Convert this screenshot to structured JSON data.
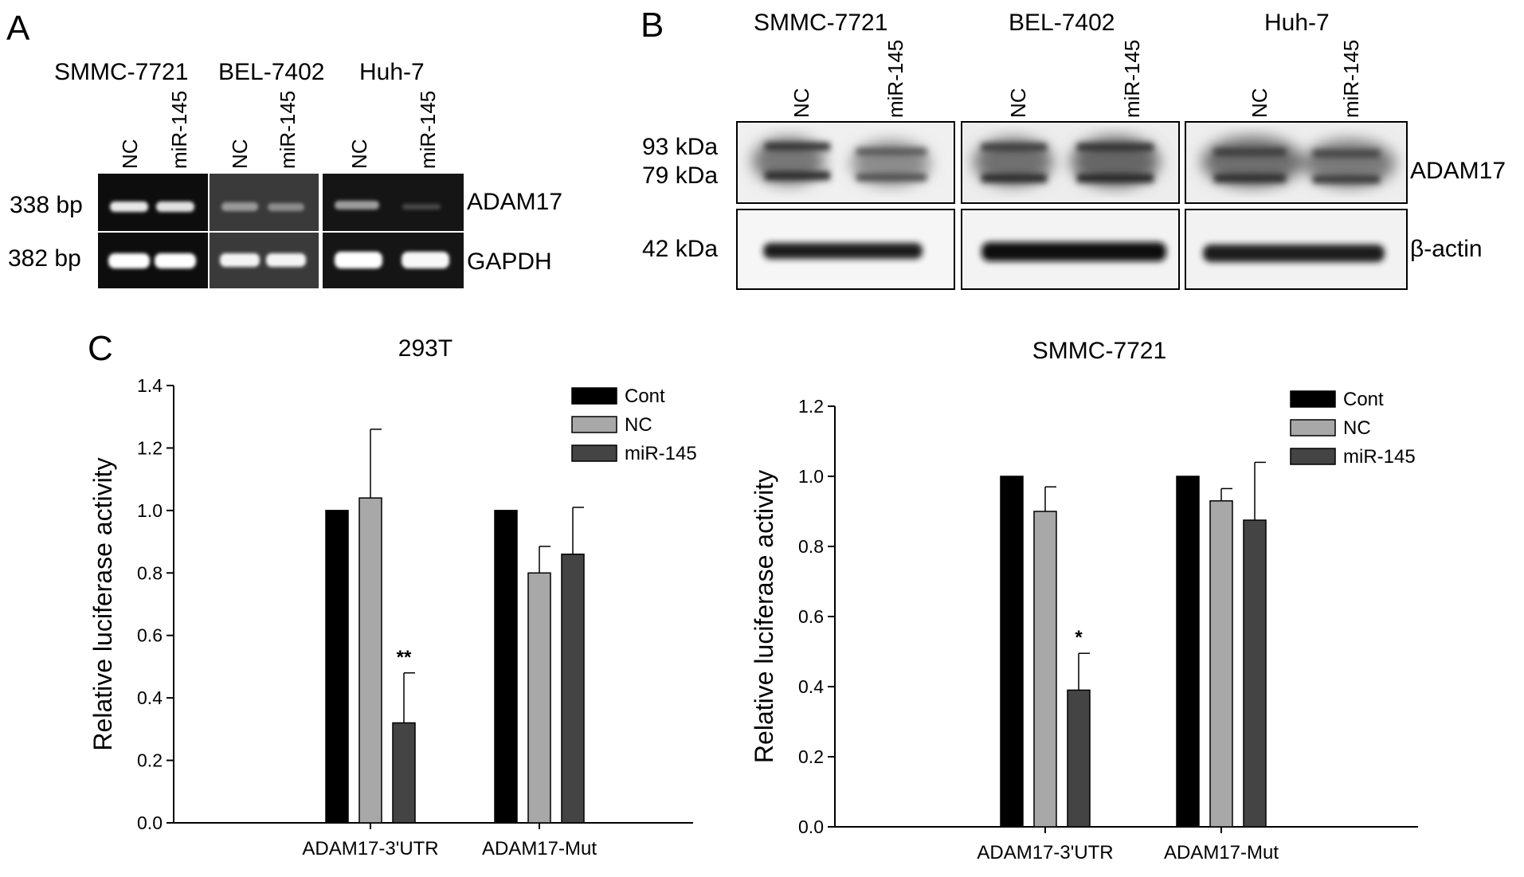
{
  "panels": {
    "A": {
      "letter": "A",
      "cell_lines": [
        "SMMC-7721",
        "BEL-7402",
        "Huh-7"
      ],
      "lanes": [
        "NC",
        "miR-145"
      ],
      "sizes": [
        "338 bp",
        "382 bp"
      ],
      "genes": [
        "ADAM17",
        "GAPDH"
      ]
    },
    "B": {
      "letter": "B",
      "cell_lines": [
        "SMMC-7721",
        "BEL-7402",
        "Huh-7"
      ],
      "lanes": [
        "NC",
        "miR-145"
      ],
      "markers": [
        "93 kDa",
        "79 kDa",
        "42 kDa"
      ],
      "proteins": [
        "ADAM17",
        "β-actin"
      ]
    },
    "C": {
      "letter": "C"
    }
  },
  "chart_data": [
    {
      "type": "bar",
      "title": "293T",
      "ylabel": "Relative luciferase activity",
      "xlabel": "",
      "categories": [
        "ADAM17-3'UTR",
        "ADAM17-Mut"
      ],
      "ylim": [
        0,
        1.4
      ],
      "yticks": [
        "0.0",
        "0.2",
        "0.4",
        "0.6",
        "0.8",
        "1.0",
        "1.2",
        "1.4"
      ],
      "legend_position": "top-right",
      "series": [
        {
          "name": "Cont",
          "color": "#000000",
          "values": [
            1.0,
            1.0
          ],
          "errors": [
            0,
            0
          ]
        },
        {
          "name": "NC",
          "color": "#a8a8a8",
          "values": [
            1.04,
            0.8
          ],
          "errors": [
            0.22,
            0.085
          ]
        },
        {
          "name": "miR-145",
          "color": "#444444",
          "values": [
            0.32,
            0.86
          ],
          "errors": [
            0.16,
            0.15
          ]
        }
      ],
      "annotations": [
        {
          "text": "**",
          "category": 0,
          "series": 2
        }
      ]
    },
    {
      "type": "bar",
      "title": "SMMC-7721",
      "ylabel": "Relative luciferase activity",
      "xlabel": "",
      "categories": [
        "ADAM17-3'UTR",
        "ADAM17-Mut"
      ],
      "ylim": [
        0,
        1.2
      ],
      "yticks": [
        "0.0",
        "0.2",
        "0.4",
        "0.6",
        "0.8",
        "1.0",
        "1.2"
      ],
      "legend_position": "top-right",
      "series": [
        {
          "name": "Cont",
          "color": "#000000",
          "values": [
            1.0,
            1.0
          ],
          "errors": [
            0,
            0
          ]
        },
        {
          "name": "NC",
          "color": "#a8a8a8",
          "values": [
            0.9,
            0.93
          ],
          "errors": [
            0.07,
            0.035
          ]
        },
        {
          "name": "miR-145",
          "color": "#444444",
          "values": [
            0.39,
            0.875
          ],
          "errors": [
            0.105,
            0.165
          ]
        }
      ],
      "annotations": [
        {
          "text": "*",
          "category": 0,
          "series": 2
        }
      ]
    }
  ]
}
